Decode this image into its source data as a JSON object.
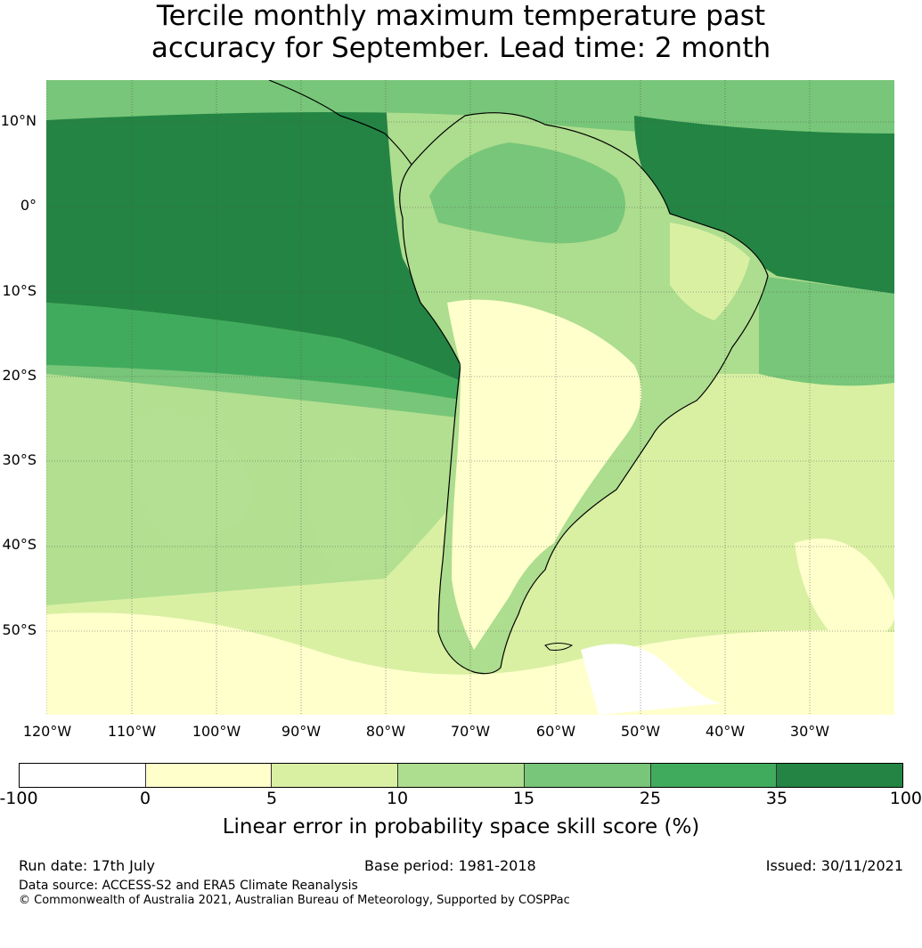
{
  "title": {
    "line1": "Tercile monthly maximum temperature past",
    "line2": "accuracy for September. Lead time: 2 month"
  },
  "map": {
    "lat_labels": [
      "10°N",
      "0°",
      "10°S",
      "20°S",
      "30°S",
      "40°S",
      "50°S"
    ],
    "lon_labels": [
      "120°W",
      "110°W",
      "100°W",
      "90°W",
      "80°W",
      "70°W",
      "60°W",
      "50°W",
      "40°W",
      "30°W"
    ]
  },
  "colorbar": {
    "colors": [
      "#ffffff",
      "#ffffcc",
      "#d9f0a3",
      "#addd8e",
      "#78c679",
      "#41ab5d",
      "#238443"
    ],
    "ticks": [
      "-100",
      "0",
      "5",
      "10",
      "15",
      "25",
      "35",
      "100"
    ],
    "label": "Linear error in probability space skill score (%)"
  },
  "footer": {
    "run_date": "Run date: 17th July",
    "base_period": "Base period: 1981-2018",
    "issued": "Issued: 30/11/2021",
    "data_source": "Data source: ACCESS-S2 and ERA5 Climate Reanalysis",
    "copyright": "© Commonwealth of Australia 2021, Australian Bureau of Meteorology, Supported by COSPPac"
  }
}
